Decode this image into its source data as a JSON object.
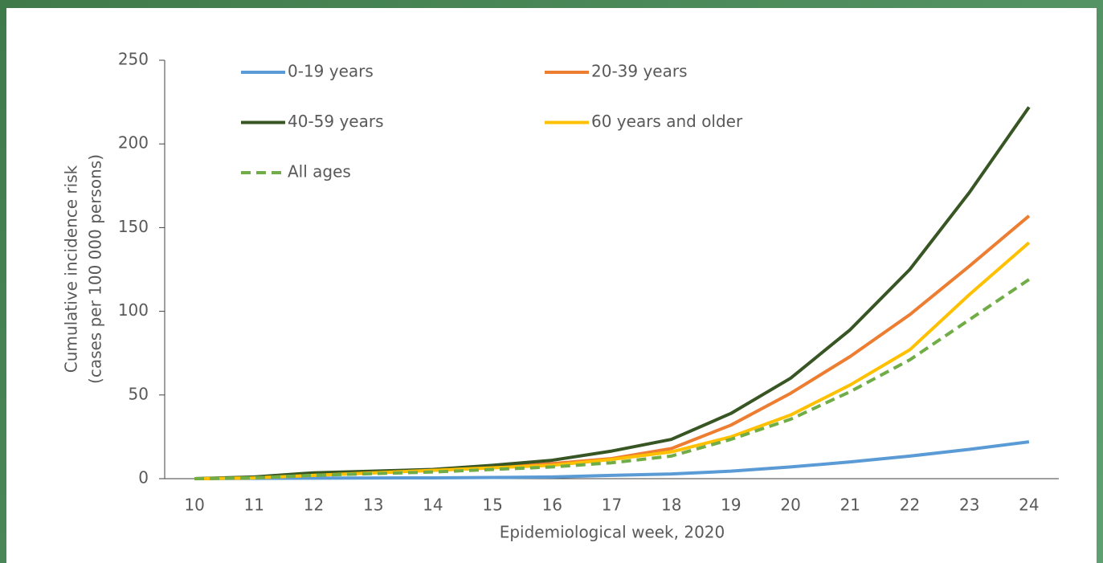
{
  "chart_data": {
    "type": "line",
    "xlabel": "Epidemiological week, 2020",
    "ylabel": [
      "Cumulative incidence risk",
      "(cases per 100 000 persons)"
    ],
    "categories": [
      "10",
      "11",
      "12",
      "13",
      "14",
      "15",
      "16",
      "17",
      "18",
      "19",
      "20",
      "21",
      "22",
      "23",
      "24"
    ],
    "ylim": [
      0,
      250
    ],
    "yticks": [
      0,
      50,
      100,
      150,
      200,
      250
    ],
    "grid": false,
    "series": [
      {
        "name": "0-19 years",
        "color": "#5b9bd5",
        "dashed": false,
        "values": [
          0,
          0.2,
          0.3,
          0.4,
          0.5,
          0.7,
          1,
          2,
          2.8,
          4.5,
          7,
          10,
          13.5,
          17.5,
          22
        ]
      },
      {
        "name": "20-39 years",
        "color": "#ed7d31",
        "dashed": false,
        "values": [
          0,
          0.5,
          2,
          3.5,
          5,
          6.5,
          9,
          12,
          18,
          32,
          51,
          73,
          98,
          127,
          157
        ]
      },
      {
        "name": "40-59 years",
        "color": "#375623",
        "dashed": false,
        "values": [
          0,
          1,
          3.5,
          4.5,
          5.5,
          8,
          11,
          16.5,
          23.5,
          39,
          60,
          89,
          125,
          171,
          222
        ]
      },
      {
        "name": "60 years and older",
        "color": "#ffc000",
        "dashed": false,
        "values": [
          0,
          0.5,
          2,
          3.5,
          5,
          6.5,
          8,
          11.5,
          16,
          25,
          38,
          56,
          77,
          110,
          141
        ]
      },
      {
        "name": "All ages",
        "color": "#70ad47",
        "dashed": true,
        "values": [
          0,
          0.5,
          2,
          3,
          4,
          5.5,
          7,
          9.5,
          13.5,
          23.5,
          35.5,
          52,
          71,
          95,
          119
        ]
      }
    ]
  }
}
